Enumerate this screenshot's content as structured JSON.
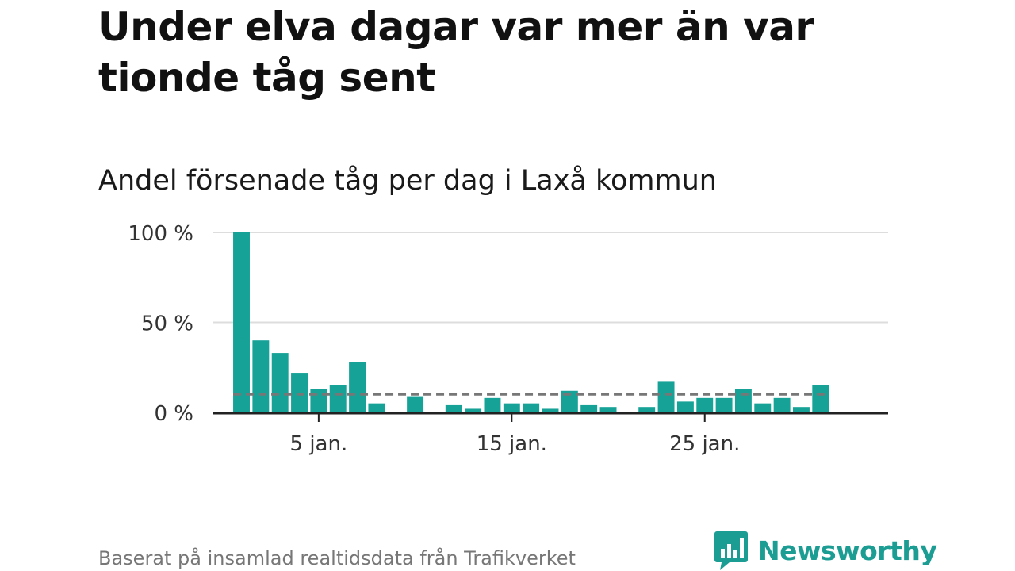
{
  "title": "Under elva dagar var mer än var tionde tåg sent",
  "subtitle": "Andel försenade tåg per dag i Laxå kommun",
  "footer": "Baserat på insamlad realtidsdata från Trafikverket",
  "brand": {
    "name": "Newsworthy",
    "color": "#1c9d94"
  },
  "chart_data": {
    "type": "bar",
    "title": "Andel försenade tåg per dag i Laxå kommun",
    "xlabel": "",
    "ylabel": "",
    "ylim": [
      0,
      100
    ],
    "y_ticks": [
      0,
      50,
      100
    ],
    "y_tick_labels": [
      "0 %",
      "50 %",
      "100 %"
    ],
    "x_ticks": [
      5,
      15,
      25
    ],
    "x_tick_labels": [
      "5 jan.",
      "15 jan.",
      "25 jan."
    ],
    "x_domain": [
      -0.5,
      34.5
    ],
    "grid": true,
    "bar_color": "#17a297",
    "reference_line": {
      "value": 10,
      "style": "dashed",
      "color": "#777777"
    },
    "days": [
      1,
      2,
      3,
      4,
      5,
      6,
      7,
      8,
      9,
      10,
      11,
      12,
      13,
      14,
      15,
      16,
      17,
      18,
      19,
      20,
      21,
      22,
      23,
      24,
      25,
      26,
      27,
      28,
      29,
      30,
      31
    ],
    "values": [
      100,
      40,
      33,
      22,
      13,
      15,
      28,
      5,
      0,
      9,
      0,
      4,
      2,
      8,
      5,
      5,
      2,
      12,
      4,
      3,
      0,
      3,
      17,
      6,
      8,
      8,
      13,
      5,
      8,
      3,
      15
    ]
  }
}
